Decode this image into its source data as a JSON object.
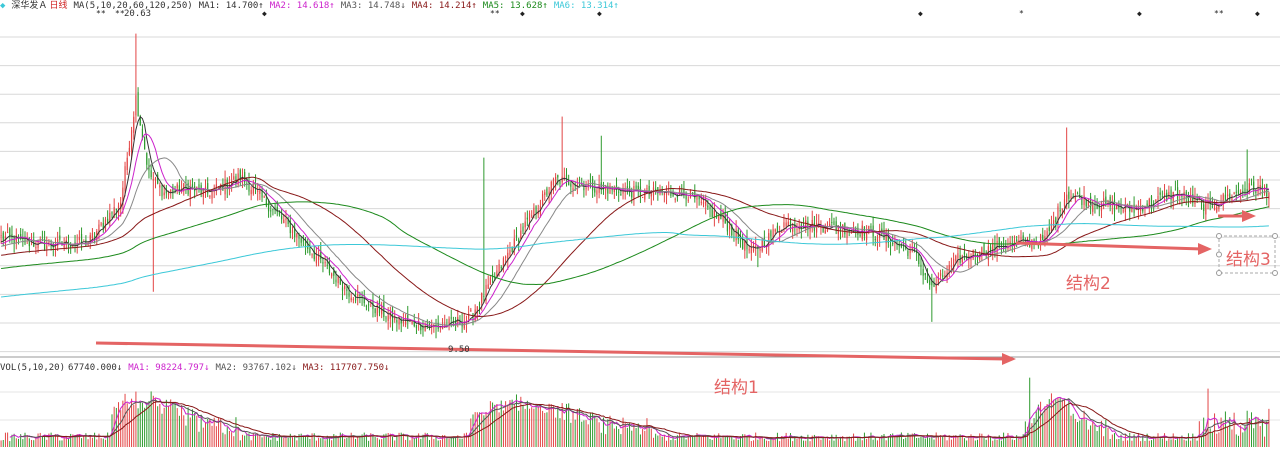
{
  "header": {
    "stock_name": "深华发Ａ",
    "period": "日线",
    "ma_params": "MA(5,10,20,60,120,250)",
    "ma_values": [
      {
        "label": "MA1: 14.700↑",
        "color": "#333333"
      },
      {
        "label": "MA2: 14.618↑",
        "color": "#cc22cc"
      },
      {
        "label": "MA3: 14.748↓",
        "color": "#555555"
      },
      {
        "label": "MA4: 14.214↑",
        "color": "#881818"
      },
      {
        "label": "MA5: 13.628↑",
        "color": "#1c8a1c"
      },
      {
        "label": "MA6: 13.314↑",
        "color": "#3cc8d8"
      }
    ]
  },
  "volume_header": {
    "params": "VOL(5,10,20)",
    "vol_value": "67740.000↓",
    "ma_values": [
      {
        "label": "MA1: 98224.797↓",
        "color": "#cc22cc"
      },
      {
        "label": "MA2: 93767.102↓",
        "color": "#555555"
      },
      {
        "label": "MA3: 117707.750↓",
        "color": "#881818"
      }
    ]
  },
  "price_labels": {
    "high": "20.63",
    "low": "9.50"
  },
  "annotations": {
    "structure1": "结构1",
    "structure2": "结构2",
    "structure3": "结构3"
  },
  "colors": {
    "up": "#e24444",
    "down": "#2e9a2e",
    "arrow": "#e46464",
    "grid": "#d8d8d8"
  },
  "chart_data": {
    "type": "candlestick",
    "title": "深华发Ａ 日线",
    "moving_averages": [
      5,
      10,
      20,
      60,
      120,
      250
    ],
    "price_high": 20.63,
    "price_low": 9.5,
    "trend_anchors": [
      [
        0,
        13.2
      ],
      [
        20,
        12.9
      ],
      [
        40,
        13.0
      ],
      [
        55,
        14.5
      ],
      [
        62,
        18.3
      ],
      [
        68,
        15.5
      ],
      [
        75,
        14.8
      ],
      [
        85,
        15.0
      ],
      [
        95,
        14.8
      ],
      [
        110,
        15.4
      ],
      [
        125,
        14.2
      ],
      [
        140,
        12.9
      ],
      [
        160,
        11.2
      ],
      [
        180,
        10.2
      ],
      [
        200,
        9.9
      ],
      [
        215,
        10.2
      ],
      [
        225,
        11.5
      ],
      [
        240,
        13.5
      ],
      [
        255,
        15.3
      ],
      [
        275,
        15.0
      ],
      [
        295,
        14.8
      ],
      [
        315,
        14.8
      ],
      [
        332,
        13.8
      ],
      [
        345,
        12.6
      ],
      [
        360,
        13.7
      ],
      [
        380,
        13.6
      ],
      [
        400,
        13.4
      ],
      [
        420,
        12.6
      ],
      [
        428,
        11.3
      ],
      [
        440,
        12.4
      ],
      [
        460,
        12.9
      ],
      [
        480,
        13.1
      ],
      [
        490,
        14.8
      ],
      [
        500,
        14.5
      ],
      [
        520,
        14.2
      ],
      [
        540,
        14.8
      ],
      [
        555,
        14.3
      ],
      [
        565,
        14.7
      ],
      [
        575,
        15.0
      ],
      [
        583,
        14.9
      ]
    ],
    "annotations": [
      {
        "label": "结构1"
      },
      {
        "label": "结构2"
      },
      {
        "label": "结构3"
      }
    ]
  }
}
